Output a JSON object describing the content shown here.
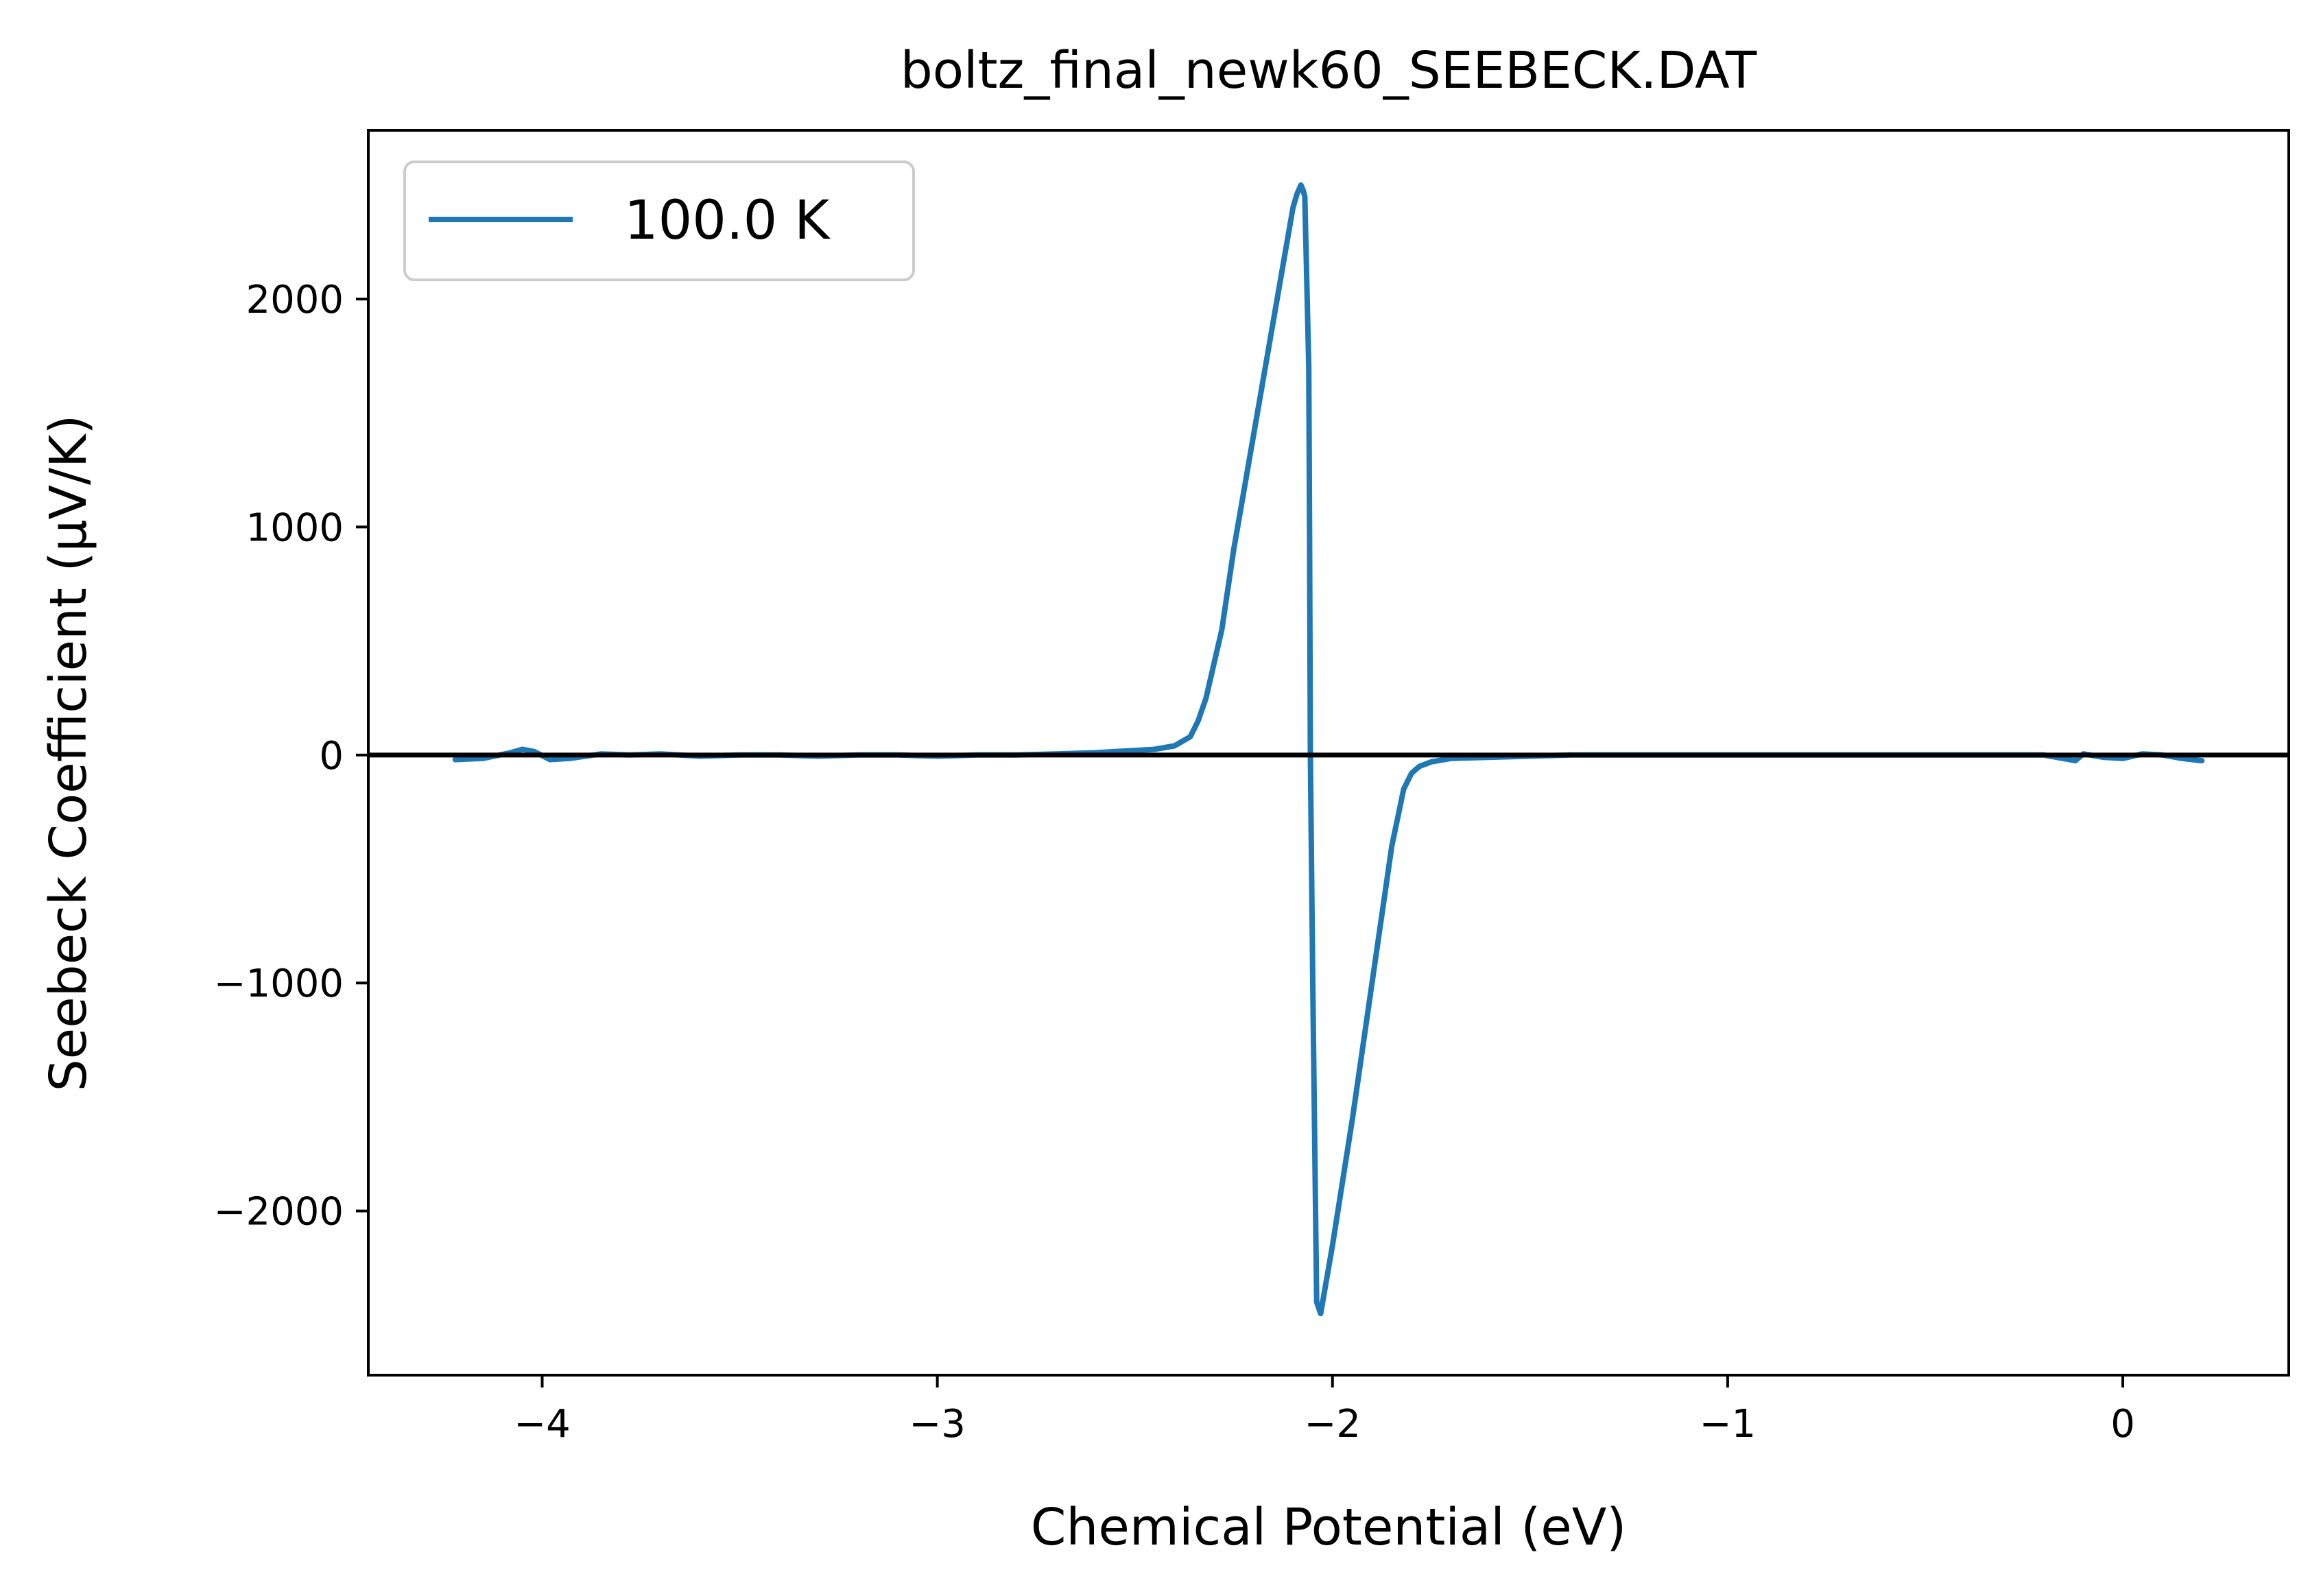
{
  "chart_data": {
    "type": "line",
    "title": "boltz_final_newk60_SEEBECK.DAT",
    "xlabel": "Chemical Potential (eV)",
    "ylabel": "Seebeck Coefficient (μV/K)",
    "xlim": [
      -4.44,
      0.42
    ],
    "ylim": [
      -2720,
      2740
    ],
    "xticks": [
      -4,
      -3,
      -2,
      -1,
      0
    ],
    "xtick_labels": [
      "−4",
      "−3",
      "−2",
      "−1",
      "0"
    ],
    "yticks": [
      2000,
      1000,
      0,
      -1000,
      -2000
    ],
    "ytick_labels": [
      "2000",
      "1000",
      "0",
      "−1000",
      "−2000"
    ],
    "grid": false,
    "legend_position": "top-left",
    "reference_line": {
      "y": 0,
      "color": "#000000"
    },
    "series": [
      {
        "name": "100.0 K",
        "color": "#1f77b4",
        "x": [
          -4.22,
          -4.15,
          -4.08,
          -4.05,
          -4.02,
          -3.98,
          -3.93,
          -3.85,
          -3.78,
          -3.7,
          -3.6,
          -3.5,
          -3.4,
          -3.3,
          -3.2,
          -3.1,
          -3.0,
          -2.9,
          -2.8,
          -2.7,
          -2.6,
          -2.55,
          -2.5,
          -2.45,
          -2.4,
          -2.38,
          -2.36,
          -2.34,
          -2.32,
          -2.3,
          -2.28,
          -2.25,
          -2.2,
          -2.15,
          -2.1,
          -2.09,
          -2.08,
          -2.075,
          -2.07,
          -2.06,
          -2.058,
          -2.056,
          -2.05,
          -2.04,
          -2.03,
          -2.0,
          -1.95,
          -1.9,
          -1.85,
          -1.82,
          -1.8,
          -1.78,
          -1.75,
          -1.7,
          -1.6,
          -1.5,
          -1.4,
          -1.3,
          -1.2,
          -1.1,
          -1.0,
          -0.9,
          -0.8,
          -0.7,
          -0.6,
          -0.5,
          -0.4,
          -0.3,
          -0.2,
          -0.12,
          -0.1,
          -0.05,
          0.0,
          0.05,
          0.1,
          0.15,
          0.2
        ],
        "y": [
          -20,
          -15,
          10,
          25,
          15,
          -20,
          -15,
          5,
          0,
          5,
          -5,
          0,
          0,
          -5,
          0,
          0,
          -5,
          0,
          0,
          5,
          10,
          15,
          20,
          25,
          40,
          60,
          80,
          150,
          250,
          400,
          550,
          900,
          1400,
          1900,
          2400,
          2460,
          2500,
          2480,
          2450,
          1700,
          1000,
          0,
          -1000,
          -2400,
          -2450,
          -2150,
          -1600,
          -1000,
          -400,
          -150,
          -80,
          -50,
          -30,
          -15,
          -10,
          -5,
          0,
          0,
          0,
          0,
          0,
          0,
          0,
          0,
          0,
          0,
          0,
          0,
          0,
          -25,
          5,
          -10,
          -15,
          5,
          0,
          -15,
          -25
        ]
      }
    ]
  }
}
